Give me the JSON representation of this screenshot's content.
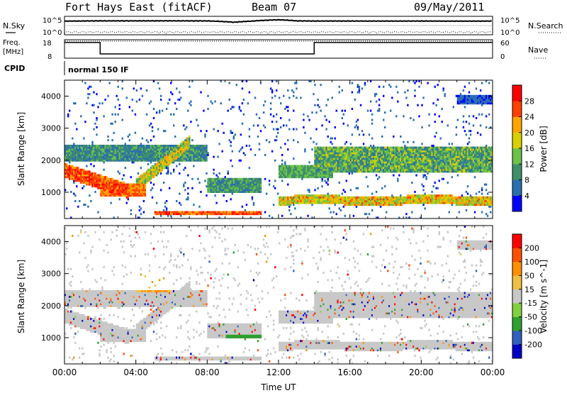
{
  "header": {
    "title": "Fort Hays East (fitACF)",
    "beam": "Beam 07",
    "date": "09/May/2011"
  },
  "noise_panel": {
    "left_label": "N.Sky",
    "right_label": "N.Search",
    "tick_top": "10^5",
    "tick_bottom": "10^0",
    "right_tick_top": "10^5",
    "right_tick_bottom": "10^0"
  },
  "freq_panel": {
    "left_label_line1": "Freq.",
    "left_label_line2": "[MHz]",
    "right_label": "Nave",
    "left_ticks": [
      "18",
      "8"
    ],
    "right_ticks": [
      "60",
      "0"
    ]
  },
  "cpid_panel": {
    "label": "CPID",
    "mode": "normal 150 IF"
  },
  "chart_data": [
    {
      "type": "line",
      "name": "noise",
      "x_label": "",
      "y_scale": "log",
      "ylim": [
        1,
        100000
      ],
      "x": [
        0,
        2,
        4,
        6,
        8,
        9.5,
        10.5,
        12,
        13,
        14,
        16,
        18,
        20,
        22,
        24
      ],
      "series": [
        {
          "values": [
            20000,
            25000,
            25000,
            26000,
            24000,
            8000,
            20000,
            60000,
            25000,
            22000,
            22000,
            21000,
            22000,
            20000,
            21000
          ]
        },
        {
          "values": [
            1,
            1,
            1,
            1,
            1,
            1,
            1,
            1,
            1,
            1,
            1,
            1,
            1,
            1,
            1
          ]
        }
      ]
    },
    {
      "type": "line",
      "name": "frequency",
      "ylim": [
        8,
        18
      ],
      "x": [
        0,
        2,
        2,
        14,
        14,
        24
      ],
      "values": [
        16.5,
        16.5,
        10.3,
        10.3,
        16.5,
        16.5
      ]
    },
    {
      "type": "heatmap",
      "name": "power",
      "xlabel": "",
      "ylabel": "Slant Range [km]",
      "xlim": [
        0,
        24
      ],
      "ylim": [
        180,
        4500
      ],
      "y_ticks": [
        "1000",
        "2000",
        "3000",
        "4000"
      ],
      "colorbar_label": "Power [dB]",
      "colorbar_ticks": [
        "4",
        "8",
        "12",
        "16",
        "20",
        "24",
        "28"
      ],
      "colors": [
        "#0000ff",
        "#2a6fb0",
        "#3f8f6a",
        "#6cc24a",
        "#d8d000",
        "#ffa500",
        "#ff4000",
        "#ff0000"
      ]
    },
    {
      "type": "heatmap",
      "name": "velocity",
      "xlabel": "Time UT",
      "ylabel": "Slant Range [km]",
      "xlim": [
        0,
        24
      ],
      "ylim": [
        180,
        4500
      ],
      "x_ticks": [
        "00:00",
        "04:00",
        "08:00",
        "12:00",
        "16:00",
        "20:00",
        "00:00"
      ],
      "y_ticks": [
        "1000",
        "2000",
        "3000",
        "4000"
      ],
      "colorbar_label": "Velocity [m s^-1]",
      "colorbar_ticks": [
        "200",
        "100",
        "50",
        "15",
        "-15",
        "-50",
        "-100",
        "-200"
      ],
      "colors": [
        "#0000c8",
        "#3060c0",
        "#30a030",
        "#80d040",
        "#c8c8c8",
        "#f0c040",
        "#ff9000",
        "#ff5000",
        "#ff0000"
      ]
    }
  ]
}
